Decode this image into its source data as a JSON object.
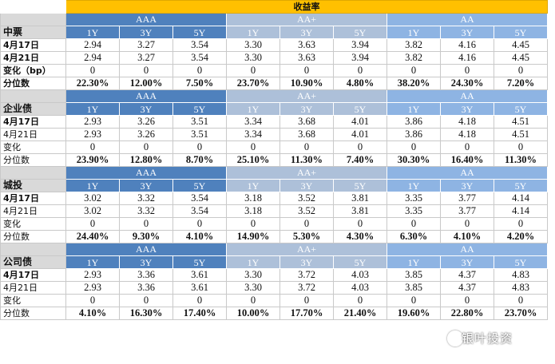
{
  "title": "收益率",
  "groups": [
    "AAA",
    "AA+",
    "AA"
  ],
  "tenors": [
    "1Y",
    "3Y",
    "5Y"
  ],
  "sections": [
    {
      "name": "中票",
      "rows": [
        {
          "label": "4月17日",
          "values": [
            "2.94",
            "3.27",
            "3.54",
            "3.30",
            "3.63",
            "3.94",
            "3.82",
            "4.16",
            "4.45"
          ]
        },
        {
          "label": "4月21日",
          "values": [
            "2.94",
            "3.27",
            "3.54",
            "3.30",
            "3.63",
            "3.94",
            "3.82",
            "4.16",
            "4.45"
          ]
        },
        {
          "label": "变化（bp）",
          "values": [
            "0",
            "0",
            "0",
            "0",
            "0",
            "0",
            "0",
            "0",
            "0"
          ]
        },
        {
          "label": "分位数",
          "values": [
            "22.30%",
            "12.00%",
            "7.50%",
            "23.70%",
            "10.90%",
            "4.80%",
            "38.20%",
            "24.30%",
            "7.20%"
          ]
        }
      ]
    },
    {
      "name": "企业债",
      "rows": [
        {
          "label": "4月17日",
          "values": [
            "2.93",
            "3.26",
            "3.51",
            "3.34",
            "3.68",
            "4.01",
            "3.86",
            "4.18",
            "4.51"
          ]
        },
        {
          "label": "4月21日",
          "values": [
            "2.93",
            "3.26",
            "3.51",
            "3.34",
            "3.68",
            "4.01",
            "3.86",
            "4.18",
            "4.51"
          ]
        },
        {
          "label": "变化",
          "values": [
            "0",
            "0",
            "0",
            "0",
            "0",
            "0",
            "0",
            "0",
            "0"
          ]
        },
        {
          "label": "分位数",
          "values": [
            "23.90%",
            "12.80%",
            "8.70%",
            "25.10%",
            "11.30%",
            "7.40%",
            "30.30%",
            "16.40%",
            "11.30%"
          ]
        }
      ]
    },
    {
      "name": "城投",
      "rows": [
        {
          "label": "4月17日",
          "values": [
            "3.02",
            "3.32",
            "3.54",
            "3.18",
            "3.52",
            "3.81",
            "3.35",
            "3.77",
            "4.14"
          ]
        },
        {
          "label": "4月21日",
          "values": [
            "3.02",
            "3.32",
            "3.54",
            "3.18",
            "3.52",
            "3.81",
            "3.35",
            "3.77",
            "4.14"
          ]
        },
        {
          "label": "变化",
          "values": [
            "0",
            "0",
            "0",
            "0",
            "0",
            "0",
            "0",
            "0",
            "0"
          ]
        },
        {
          "label": "分位数",
          "values": [
            "24.40%",
            "9.30%",
            "4.10%",
            "14.90%",
            "5.30%",
            "4.30%",
            "6.30%",
            "4.10%",
            "4.20%"
          ]
        }
      ]
    },
    {
      "name": "公司债",
      "rows": [
        {
          "label": "4月17日",
          "values": [
            "2.93",
            "3.36",
            "3.61",
            "3.30",
            "3.72",
            "4.03",
            "3.85",
            "4.37",
            "4.83"
          ]
        },
        {
          "label": "4月21日",
          "values": [
            "2.93",
            "3.36",
            "3.61",
            "3.30",
            "3.72",
            "4.03",
            "3.85",
            "4.37",
            "4.83"
          ]
        },
        {
          "label": "变化",
          "values": [
            "0",
            "0",
            "0",
            "0",
            "0",
            "0",
            "0",
            "0",
            "0"
          ]
        },
        {
          "label": "分位数",
          "values": [
            "4.10%",
            "16.30%",
            "17.40%",
            "10.00%",
            "17.70%",
            "21.40%",
            "19.60%",
            "22.80%",
            "23.70%"
          ]
        }
      ]
    }
  ],
  "watermark": "银叶投资",
  "colors": {
    "title_bg": "#ffc000",
    "aaa_bg": "#4f81bd",
    "aaplus_bg": "#adc0d9",
    "aa_bg": "#8eb4e3",
    "label_bg": "#d9d9d9"
  }
}
